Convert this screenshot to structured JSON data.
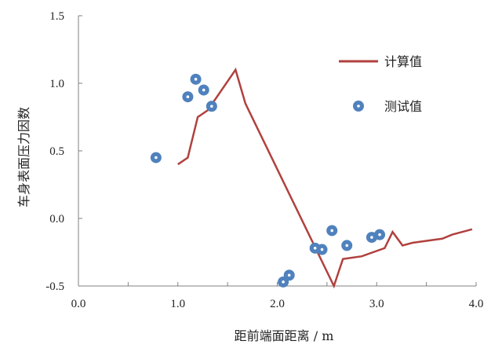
{
  "chart_data": {
    "type": "line",
    "xlabel": "距前端面距离 / m",
    "ylabel": "车身表面压力因数",
    "xlim": [
      0.0,
      4.0
    ],
    "ylim": [
      -0.5,
      1.5
    ],
    "x_ticks": [
      "0.0",
      "1.0",
      "2.0",
      "3.0",
      "4.0"
    ],
    "y_ticks": [
      "-0.5",
      "0.0",
      "0.5",
      "1.0",
      "1.5"
    ],
    "grid": false,
    "legend_position": "right",
    "series": [
      {
        "name": "计算值",
        "kind": "line",
        "color": "#b0413e",
        "points": [
          [
            1.0,
            0.4
          ],
          [
            1.1,
            0.45
          ],
          [
            1.2,
            0.75
          ],
          [
            1.3,
            0.8
          ],
          [
            1.58,
            1.1
          ],
          [
            1.68,
            0.85
          ],
          [
            2.57,
            -0.5
          ],
          [
            2.66,
            -0.3
          ],
          [
            2.85,
            -0.28
          ],
          [
            3.08,
            -0.22
          ],
          [
            3.16,
            -0.1
          ],
          [
            3.26,
            -0.2
          ],
          [
            3.36,
            -0.18
          ],
          [
            3.66,
            -0.15
          ],
          [
            3.76,
            -0.12
          ],
          [
            3.96,
            -0.08
          ]
        ]
      },
      {
        "name": "测试值",
        "kind": "scatter",
        "color": "#4f81bd",
        "points": [
          [
            0.78,
            0.45
          ],
          [
            1.1,
            0.9
          ],
          [
            1.18,
            1.03
          ],
          [
            1.26,
            0.95
          ],
          [
            1.34,
            0.83
          ],
          [
            2.06,
            -0.47
          ],
          [
            2.12,
            -0.42
          ],
          [
            2.38,
            -0.22
          ],
          [
            2.45,
            -0.23
          ],
          [
            2.55,
            -0.09
          ],
          [
            2.7,
            -0.2
          ],
          [
            2.95,
            -0.14
          ],
          [
            3.03,
            -0.12
          ]
        ]
      }
    ]
  }
}
